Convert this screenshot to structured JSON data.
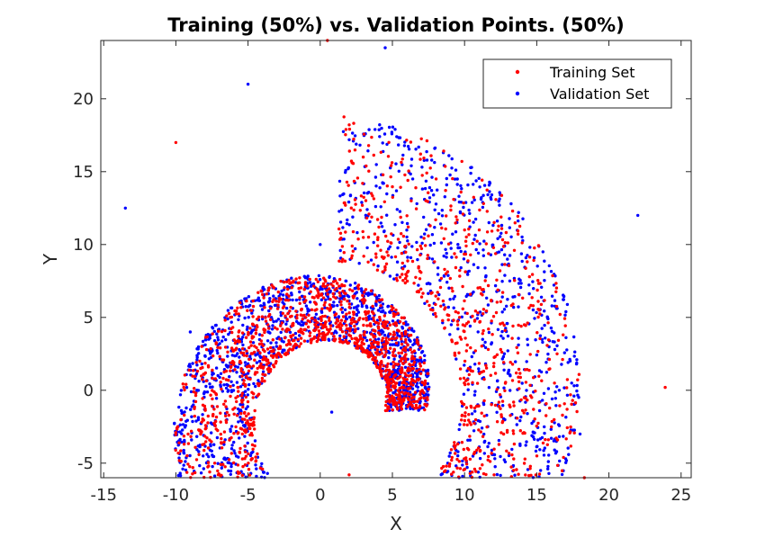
{
  "chart_data": {
    "type": "scatter",
    "title": "Training (50%) vs. Validation Points. (50%)",
    "xlabel": "X",
    "ylabel": "Y",
    "xlim": [
      -15.2,
      25.7
    ],
    "ylim": [
      -6,
      24
    ],
    "xticks": [
      -15,
      -10,
      -5,
      0,
      5,
      10,
      15,
      20,
      25
    ],
    "yticks": [
      -5,
      0,
      5,
      10,
      15,
      20
    ],
    "grid": false,
    "legend_position": "top-right",
    "series": [
      {
        "name": "Training Set",
        "color": "#ff0000",
        "spiral": {
          "center": [
            1.3,
            -1.4
          ],
          "theta_start_deg": 0,
          "theta_end_deg": 450,
          "radius_start": 4.6,
          "radius_end": 14.5,
          "sampling": "inner-seeded"
        }
      },
      {
        "name": "Validation Set",
        "color": "#0000ff",
        "spiral": {
          "center": [
            1.3,
            -1.4
          ],
          "theta_start_deg": 0,
          "theta_end_deg": 450,
          "radius_start": 4.6,
          "radius_end": 14.5,
          "sampling": "outer-seeded"
        }
      }
    ],
    "sample_points": {
      "Training Set": [
        [
          23.9,
          0.2
        ],
        [
          18.3,
          -6.0
        ],
        [
          6.1,
          1.5
        ],
        [
          2.0,
          -5.8
        ],
        [
          10.0,
          11.0
        ],
        [
          -1.0,
          5.0
        ],
        [
          -10.0,
          17.0
        ],
        [
          0.5,
          24.0
        ]
      ],
      "Validation Set": [
        [
          -13.5,
          12.5
        ],
        [
          0.8,
          -1.5
        ],
        [
          4.5,
          23.5
        ],
        [
          -5.0,
          21.0
        ],
        [
          18.0,
          -3.0
        ],
        [
          22.0,
          12.0
        ],
        [
          -9.0,
          4.0
        ],
        [
          0.0,
          10.0
        ]
      ]
    }
  }
}
